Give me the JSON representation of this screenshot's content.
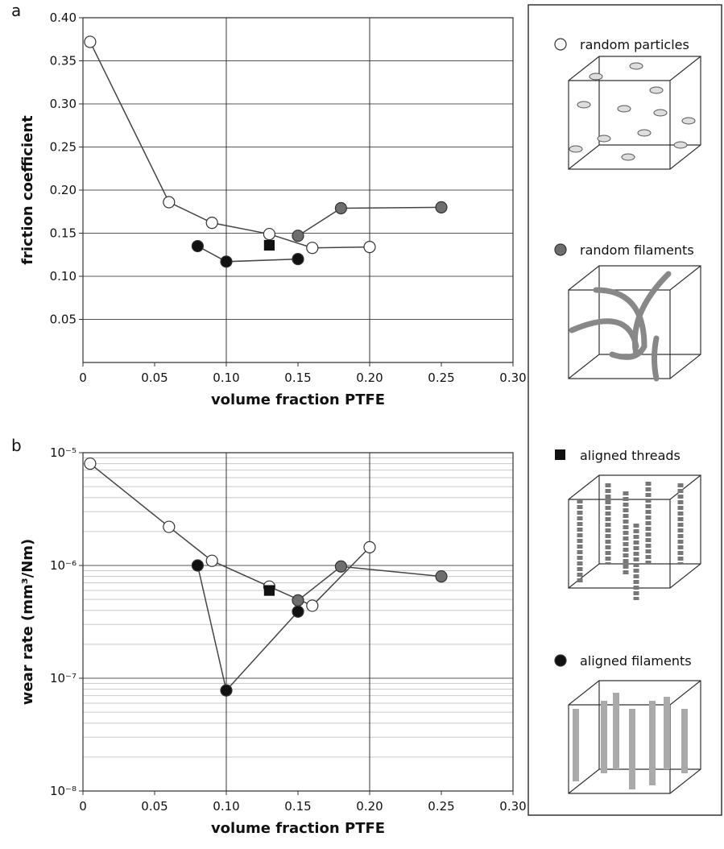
{
  "chart_data": [
    {
      "type": "scatter",
      "label": "a",
      "xlabel": "volume fraction PTFE",
      "ylabel": "friction coefficient",
      "xlim": [
        0,
        0.3
      ],
      "xticks": [
        0,
        0.05,
        {
          "value": 0.1,
          "label": "0.10"
        },
        0.15,
        {
          "value": 0.2,
          "label": "0.20"
        },
        0.25,
        {
          "value": 0.3,
          "label": "0.30"
        }
      ],
      "ylim": [
        0,
        0.4
      ],
      "yticks": [
        0.05,
        {
          "value": 0.1,
          "label": "0.10"
        },
        0.15,
        {
          "value": 0.2,
          "label": "0.20"
        },
        0.25,
        {
          "value": 0.3,
          "label": "0.30"
        },
        0.35,
        {
          "value": 0.4,
          "label": "0.40"
        }
      ],
      "xgrid": [
        0.1,
        0.2
      ],
      "log_y": false,
      "series": [
        {
          "name": "random particles",
          "marker": "circle",
          "color": "#ffffff",
          "x": [
            0.005,
            0.06,
            0.09,
            0.13,
            0.16,
            0.2
          ],
          "values": [
            0.372,
            0.186,
            0.162,
            0.149,
            0.133,
            0.134
          ]
        },
        {
          "name": "random filaments",
          "marker": "circle",
          "color": "#6e6e6e",
          "x": [
            0.15,
            0.18,
            0.25
          ],
          "values": [
            0.147,
            0.179,
            0.18
          ]
        },
        {
          "name": "aligned threads",
          "marker": "square",
          "color": "#111111",
          "x": [
            0.13
          ],
          "values": [
            0.136
          ]
        },
        {
          "name": "aligned filaments",
          "marker": "circle",
          "color": "#111111",
          "x": [
            0.08,
            0.1,
            0.15
          ],
          "values": [
            0.135,
            0.117,
            0.12
          ]
        }
      ]
    },
    {
      "type": "scatter",
      "label": "b",
      "xlabel": "volume fraction PTFE",
      "ylabel": "wear rate (mm³/Nm)",
      "xlim": [
        0,
        0.3
      ],
      "xticks": [
        0,
        0.05,
        {
          "value": 0.1,
          "label": "0.10"
        },
        0.15,
        {
          "value": 0.2,
          "label": "0.20"
        },
        0.25,
        {
          "value": 0.3,
          "label": "0.30"
        }
      ],
      "ylim": [
        1e-08,
        1e-05
      ],
      "yticks": [
        {
          "value": 1e-08,
          "label": "10⁻⁸"
        },
        {
          "value": 1e-07,
          "label": "10⁻⁷"
        },
        {
          "value": 1e-06,
          "label": "10⁻⁶"
        },
        {
          "value": 1e-05,
          "label": "10⁻⁵"
        }
      ],
      "xgrid": [
        0.1,
        0.2
      ],
      "log_y": true,
      "series": [
        {
          "marker": "circle",
          "color": "#ffffff",
          "x": [
            0.005,
            0.06,
            0.09,
            0.13,
            0.16,
            0.2
          ],
          "values": [
            8e-06,
            2.2e-06,
            1.1e-06,
            6.5e-07,
            4.4e-07,
            1.45e-06
          ]
        },
        {
          "marker": "circle",
          "color": "#6e6e6e",
          "x": [
            0.15,
            0.18,
            0.25
          ],
          "values": [
            4.9e-07,
            9.8e-07,
            8e-07
          ]
        },
        {
          "marker": "square",
          "color": "#111111",
          "x": [
            0.13
          ],
          "values": [
            6e-07
          ]
        },
        {
          "marker": "circle",
          "color": "#111111",
          "x": [
            0.08,
            0.1,
            0.15
          ],
          "values": [
            1e-06,
            7.8e-08,
            3.9e-07
          ]
        }
      ]
    }
  ]
}
